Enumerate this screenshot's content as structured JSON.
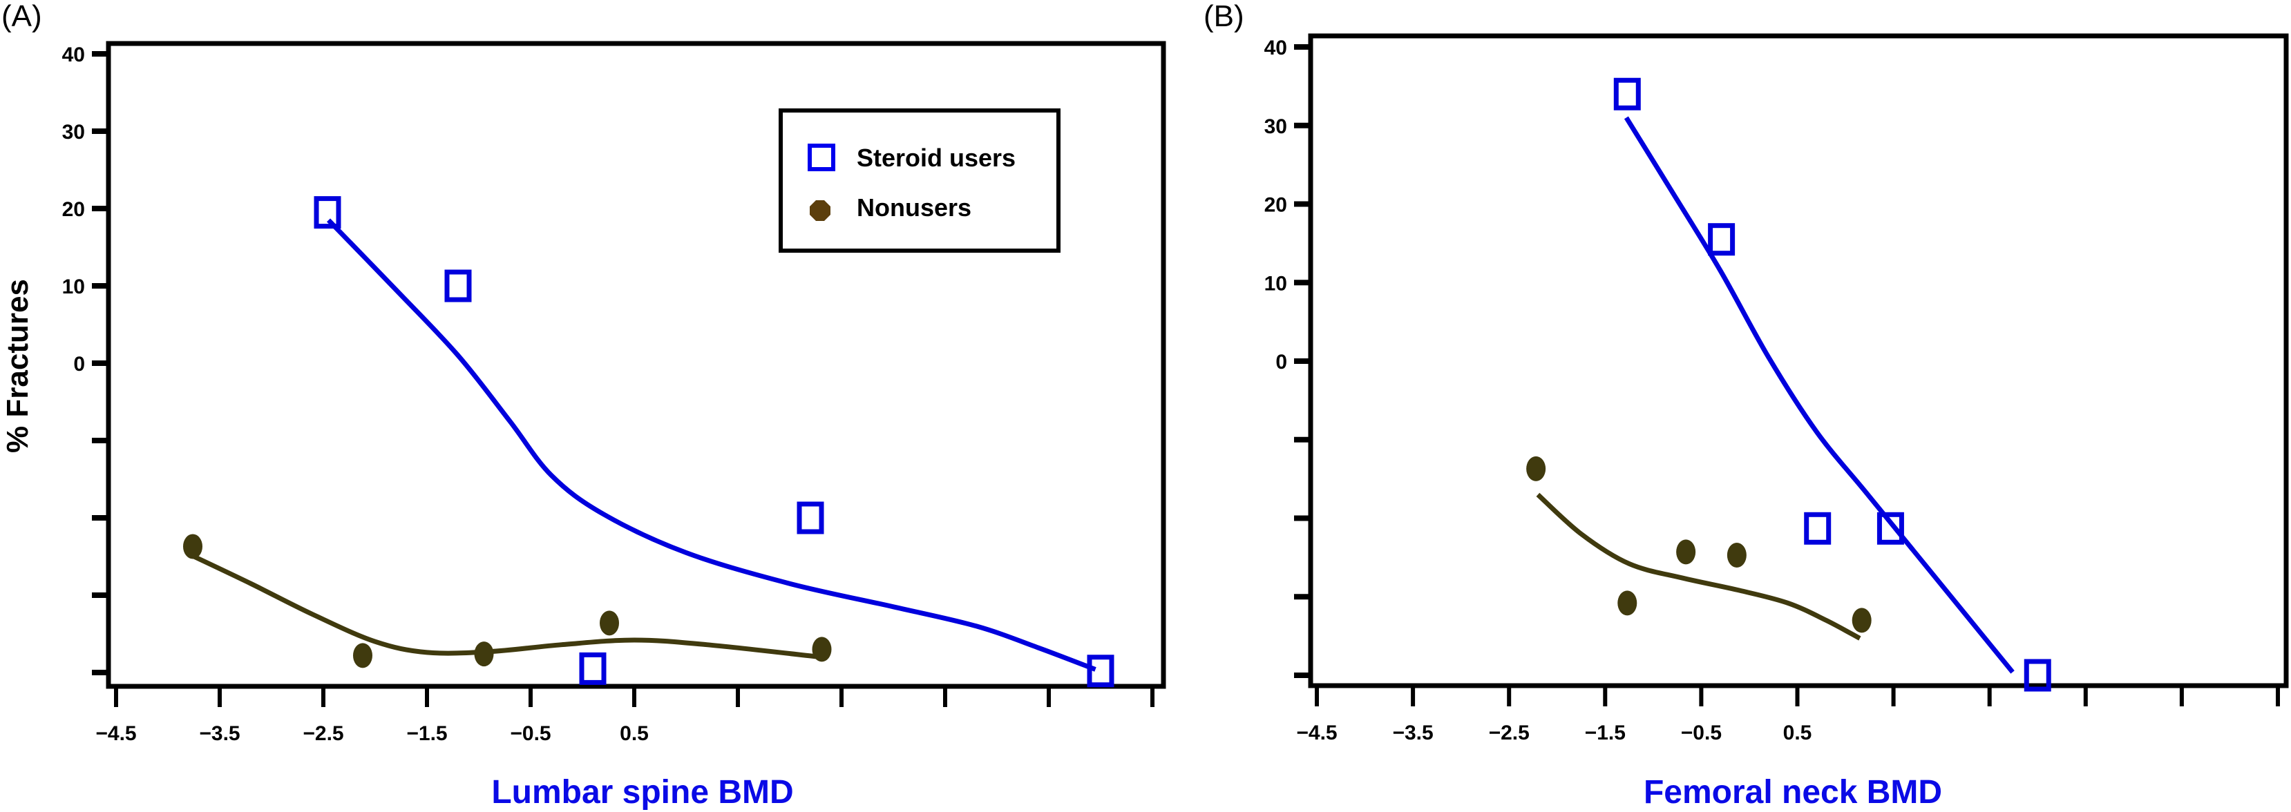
{
  "chart_data": [
    {
      "type": "scatter",
      "panel_label": "(A)",
      "title": "",
      "xlabel": "Lumbar spine BMD",
      "ylabel": "% Fractures",
      "xlim": [
        -4.5,
        5.5
      ],
      "ylim": [
        -40,
        40
      ],
      "x_ticks": [
        -4.5,
        -3.5,
        -2.5,
        -1.5,
        -0.5,
        0.5,
        1.5,
        2.5,
        3.5,
        4.5,
        5.5
      ],
      "x_tick_labels": [
        "−4.5",
        "−3.5",
        "−2.5",
        "−1.5",
        "−0.5",
        "0.5",
        "",
        "",
        "",
        "",
        ""
      ],
      "y_ticks": [
        40,
        30,
        20,
        10,
        0,
        -10,
        -20,
        -30,
        -40
      ],
      "y_tick_labels": [
        "40",
        "30",
        "20",
        "10",
        "0",
        "",
        "",
        "",
        ""
      ],
      "grid": false,
      "legend": {
        "position": "top-right",
        "entries": [
          {
            "label": "Steroid users",
            "marker": "open-square",
            "color": "#0000dd"
          },
          {
            "label": "Nonusers",
            "marker": "filled-circle",
            "color": "#5c3f0d"
          }
        ]
      },
      "series": [
        {
          "name": "Steroid users",
          "color": "#0000dd",
          "points": [
            [
              -2.46,
              19.5
            ],
            [
              -1.2,
              10
            ],
            [
              0.1,
              -39.5
            ],
            [
              2.2,
              -20
            ],
            [
              5.0,
              -39.8
            ]
          ],
          "fit_curve": [
            [
              -2.45,
              18.5
            ],
            [
              -1.8,
              9.5
            ],
            [
              -1.2,
              1
            ],
            [
              -0.7,
              -7.5
            ],
            [
              -0.3,
              -14.5
            ],
            [
              0.2,
              -19.5
            ],
            [
              1.0,
              -24.5
            ],
            [
              2.0,
              -28.5
            ],
            [
              3.0,
              -31.5
            ],
            [
              3.8,
              -34
            ],
            [
              4.4,
              -36.8
            ],
            [
              4.95,
              -39.6
            ]
          ]
        },
        {
          "name": "Nonusers",
          "color": "#403a0e",
          "points": [
            [
              -3.76,
              -23.7
            ],
            [
              -2.12,
              -37.8
            ],
            [
              -0.95,
              -37.6
            ],
            [
              0.26,
              -33.6
            ],
            [
              2.31,
              -37.0
            ]
          ],
          "fit_curve": [
            [
              -3.78,
              -24.8
            ],
            [
              -3.2,
              -28.5
            ],
            [
              -2.6,
              -32.5
            ],
            [
              -2.0,
              -36.0
            ],
            [
              -1.5,
              -37.4
            ],
            [
              -0.9,
              -37.3
            ],
            [
              -0.2,
              -36.4
            ],
            [
              0.5,
              -35.8
            ],
            [
              1.2,
              -36.4
            ],
            [
              2.3,
              -38.0
            ]
          ]
        }
      ]
    },
    {
      "type": "scatter",
      "panel_label": "(B)",
      "title": "",
      "xlabel": "Femoral neck BMD",
      "ylabel": "",
      "xlim": [
        -4.5,
        5.5
      ],
      "ylim": [
        -40,
        40
      ],
      "x_ticks": [
        -4.5,
        -3.5,
        -2.5,
        -1.5,
        -0.5,
        0.5,
        1.5,
        2.5,
        3.5,
        4.5,
        5.5
      ],
      "x_tick_labels": [
        "−4.5",
        "−3.5",
        "−2.5",
        "−1.5",
        "−0.5",
        "0.5",
        "",
        "",
        "",
        "",
        ""
      ],
      "y_ticks": [
        40,
        30,
        20,
        10,
        0,
        -10,
        -20,
        -30,
        -40
      ],
      "y_tick_labels": [
        "40",
        "30",
        "20",
        "10",
        "0",
        "",
        "",
        "",
        ""
      ],
      "grid": false,
      "series": [
        {
          "name": "Steroid users",
          "color": "#0000dd",
          "points": [
            [
              -1.27,
              34.0
            ],
            [
              -0.29,
              15.5
            ],
            [
              0.71,
              -21.3
            ],
            [
              1.47,
              -21.3
            ],
            [
              3.0,
              -40.0
            ]
          ],
          "fit_curve": [
            [
              -1.28,
              31.0
            ],
            [
              -0.8,
              21.5
            ],
            [
              -0.3,
              11.5
            ],
            [
              0.2,
              0.5
            ],
            [
              0.7,
              -9.0
            ],
            [
              1.2,
              -16.5
            ],
            [
              1.7,
              -24.0
            ],
            [
              2.2,
              -31.5
            ],
            [
              2.74,
              -39.6
            ]
          ]
        },
        {
          "name": "Nonusers",
          "color": "#403a0e",
          "points": [
            [
              -2.22,
              -13.7
            ],
            [
              -1.27,
              -30.8
            ],
            [
              -0.66,
              -24.3
            ],
            [
              -0.13,
              -24.7
            ],
            [
              1.17,
              -33.0
            ]
          ],
          "fit_curve": [
            [
              -2.2,
              -17.0
            ],
            [
              -1.75,
              -22.0
            ],
            [
              -1.25,
              -25.8
            ],
            [
              -0.7,
              -27.6
            ],
            [
              -0.1,
              -29.2
            ],
            [
              0.4,
              -30.8
            ],
            [
              0.8,
              -33.0
            ],
            [
              1.15,
              -35.3
            ]
          ]
        }
      ]
    }
  ]
}
